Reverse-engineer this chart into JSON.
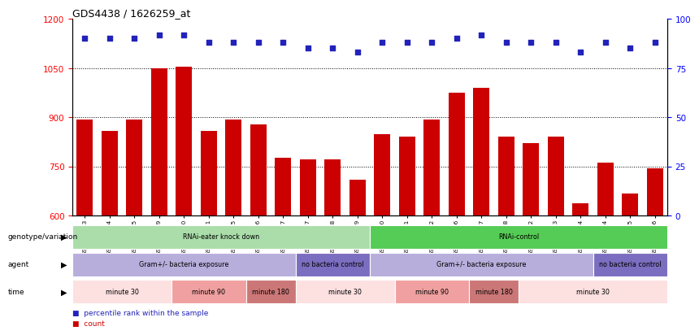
{
  "title": "GDS4438 / 1626259_at",
  "samples": [
    "GSM783343",
    "GSM783344",
    "GSM783345",
    "GSM783349",
    "GSM783350",
    "GSM783351",
    "GSM783355",
    "GSM783356",
    "GSM783357",
    "GSM783337",
    "GSM783338",
    "GSM783339",
    "GSM783340",
    "GSM783341",
    "GSM783342",
    "GSM783346",
    "GSM783347",
    "GSM783348",
    "GSM783352",
    "GSM783353",
    "GSM783354",
    "GSM783334",
    "GSM783335",
    "GSM783336"
  ],
  "counts": [
    893,
    858,
    893,
    1050,
    1055,
    858,
    893,
    878,
    775,
    770,
    770,
    710,
    848,
    840,
    893,
    975,
    990,
    840,
    820,
    840,
    638,
    760,
    668,
    745
  ],
  "percentiles": [
    90,
    90,
    90,
    92,
    92,
    88,
    88,
    88,
    88,
    85,
    85,
    83,
    88,
    88,
    88,
    90,
    92,
    88,
    88,
    88,
    83,
    88,
    85,
    88
  ],
  "bar_color": "#cc0000",
  "dot_color": "#2222bb",
  "ylim_left": [
    600,
    1200
  ],
  "ylim_right": [
    0,
    100
  ],
  "yticks_left": [
    600,
    750,
    900,
    1050,
    1200
  ],
  "yticks_right": [
    0,
    25,
    50,
    75,
    100
  ],
  "grid_values": [
    750,
    900,
    1050
  ],
  "annotation_rows": [
    {
      "label": "genotype/variation",
      "entries": [
        {
          "text": "RNAi-eater knock down",
          "start": 0,
          "end": 12,
          "color": "#aaddaa",
          "textcolor": "#000000"
        },
        {
          "text": "RNAi-control",
          "start": 12,
          "end": 24,
          "color": "#55cc55",
          "textcolor": "#000000"
        }
      ]
    },
    {
      "label": "agent",
      "entries": [
        {
          "text": "Gram+/- bacteria exposure",
          "start": 0,
          "end": 9,
          "color": "#b8aedc",
          "textcolor": "#000000"
        },
        {
          "text": "no bacteria control",
          "start": 9,
          "end": 12,
          "color": "#7b6dbf",
          "textcolor": "#000000"
        },
        {
          "text": "Gram+/- bacteria exposure",
          "start": 12,
          "end": 21,
          "color": "#b8aedc",
          "textcolor": "#000000"
        },
        {
          "text": "no bacteria control",
          "start": 21,
          "end": 24,
          "color": "#7b6dbf",
          "textcolor": "#000000"
        }
      ]
    },
    {
      "label": "time",
      "entries": [
        {
          "text": "minute 30",
          "start": 0,
          "end": 4,
          "color": "#fde0e0",
          "textcolor": "#000000"
        },
        {
          "text": "minute 90",
          "start": 4,
          "end": 7,
          "color": "#f0a0a0",
          "textcolor": "#000000"
        },
        {
          "text": "minute 180",
          "start": 7,
          "end": 9,
          "color": "#cc7777",
          "textcolor": "#000000"
        },
        {
          "text": "minute 30",
          "start": 9,
          "end": 13,
          "color": "#fde0e0",
          "textcolor": "#000000"
        },
        {
          "text": "minute 90",
          "start": 13,
          "end": 16,
          "color": "#f0a0a0",
          "textcolor": "#000000"
        },
        {
          "text": "minute 180",
          "start": 16,
          "end": 18,
          "color": "#cc7777",
          "textcolor": "#000000"
        },
        {
          "text": "minute 30",
          "start": 18,
          "end": 24,
          "color": "#fde0e0",
          "textcolor": "#000000"
        }
      ]
    }
  ],
  "legend": [
    {
      "color": "#cc0000",
      "label": "count"
    },
    {
      "color": "#2222bb",
      "label": "percentile rank within the sample"
    }
  ]
}
